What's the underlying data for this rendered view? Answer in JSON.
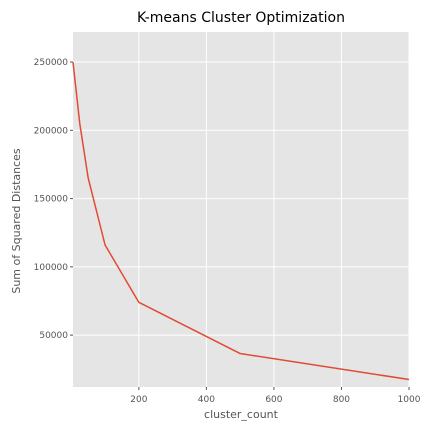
{
  "chart_data": {
    "type": "line",
    "title": "K-means Cluster Optimization",
    "xlabel": "cluster_count",
    "ylabel": "Sum of Squared Distances",
    "xlim": [
      5,
      1000
    ],
    "ylim": [
      12000,
      272000
    ],
    "xticks": [
      200,
      400,
      600,
      800,
      1000
    ],
    "xtick_labels": [
      "200",
      "400",
      "600",
      "800",
      "1000"
    ],
    "yticks": [
      50000,
      100000,
      150000,
      200000,
      250000
    ],
    "ytick_labels": [
      "50000",
      "100000",
      "150000",
      "200000",
      "250000"
    ],
    "grid": true,
    "legend": false,
    "series": [
      {
        "x": [
          5,
          25,
          50,
          100,
          200,
          500,
          1000
        ],
        "y": [
          250000,
          205000,
          165000,
          116000,
          74000,
          36500,
          17500
        ]
      }
    ]
  },
  "colors": {
    "plot_background": "#e5e5e5",
    "grid": "#ffffff",
    "series_line": "#e24a33"
  }
}
